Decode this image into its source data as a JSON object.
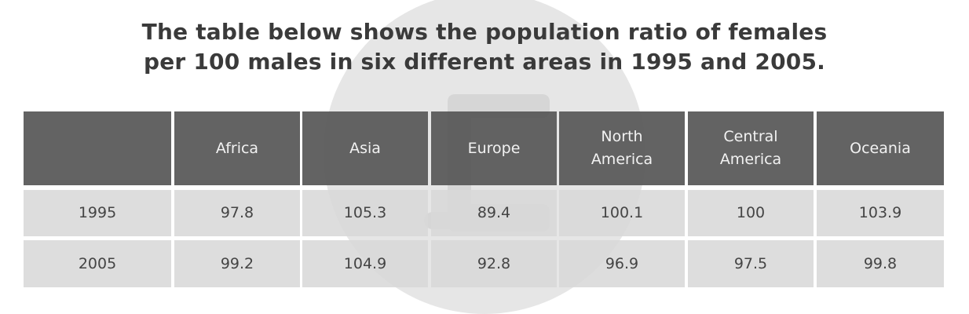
{
  "title": {
    "line1": "The table below shows the population ratio of females",
    "line2": "per 100 males in six different areas in 1995 and 2005."
  },
  "colors": {
    "header_bg": "#575757",
    "row_bg": "#d8d8d8",
    "header_text": "#f2f2f2",
    "body_text": "#444444",
    "watermark": "#e6e6e6"
  },
  "chart_data": {
    "type": "table",
    "columns": [
      "",
      "Africa",
      "Asia",
      "Europe",
      "North\nAmerica",
      "Central\nAmerica",
      "Oceania"
    ],
    "rows": [
      [
        "1995",
        "97.8",
        "105.3",
        "89.4",
        "100.1",
        "100",
        "103.9"
      ],
      [
        "2005",
        "99.2",
        "104.9",
        "92.8",
        "96.9",
        "97.5",
        "99.8"
      ]
    ]
  }
}
